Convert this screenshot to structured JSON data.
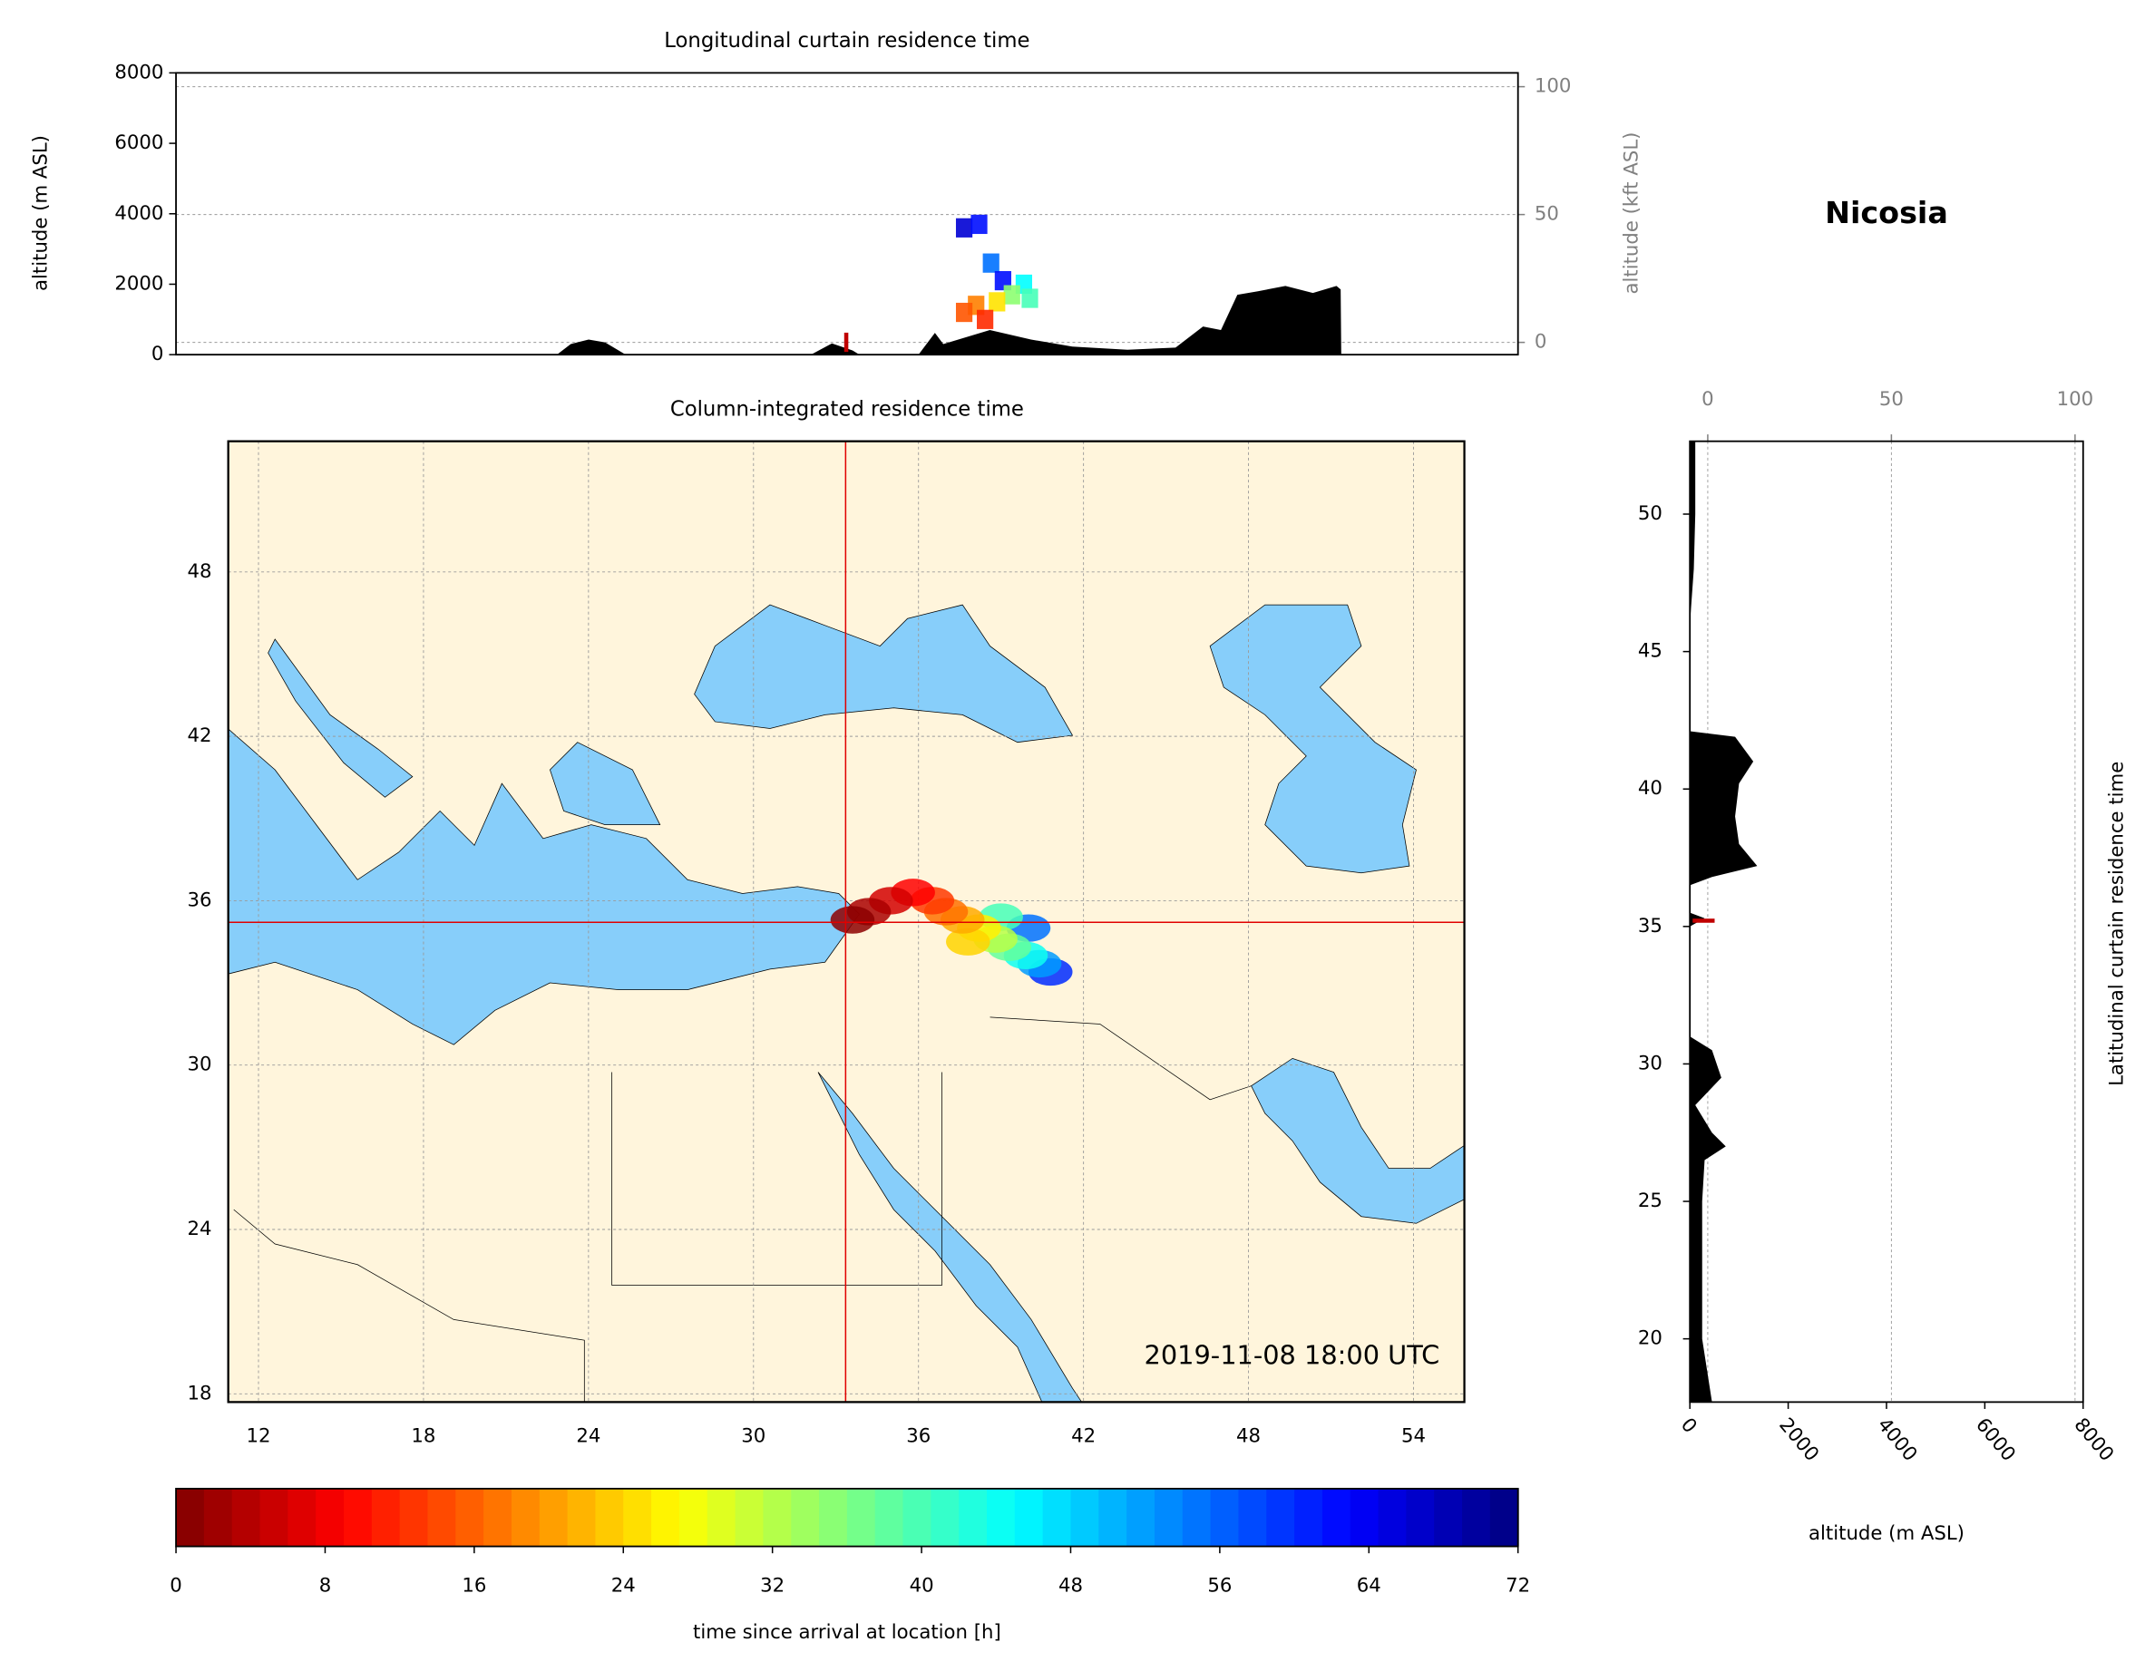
{
  "chart_data": [
    {
      "type": "area",
      "title": "Longitudinal curtain residence time",
      "ylabel": "altitude (m ASL)",
      "y2label": "altitude (kft ASL)",
      "xlim": [
        10.9,
        55.85
      ],
      "ylim": [
        0,
        8000
      ],
      "yticks": [
        0,
        2000,
        4000,
        6000,
        8000
      ],
      "y2lim": [
        -4.8,
        105.4
      ],
      "y2ticks": [
        0,
        50,
        100
      ],
      "grid": true,
      "color": "#000000",
      "x": [
        23.66,
        24.12,
        24.72,
        25.27,
        25.96,
        32.17,
        32.87,
        33.56,
        33.79,
        35.77,
        36.32,
        36.6,
        38.16,
        39.54,
        40.92,
        42.77,
        44.38,
        45.3,
        45.9,
        46.45,
        47.14,
        48.06,
        48.98,
        49.77,
        49.91,
        49.93
      ],
      "values": [
        0,
        300,
        430,
        350,
        0,
        0,
        320,
        120,
        0,
        0,
        620,
        300,
        700,
        430,
        230,
        140,
        200,
        800,
        700,
        1700,
        1800,
        1950,
        1750,
        1950,
        1850,
        0
      ],
      "cells": {
        "lon": [
          37.3,
          37.8,
          38.2,
          38.6,
          39.3,
          38.9,
          38.4,
          37.7,
          37.3,
          38.0,
          39.5
        ],
        "altitude": [
          3600,
          3700,
          2600,
          2100,
          2000,
          1700,
          1500,
          1400,
          1200,
          1000,
          1600
        ],
        "time": [
          66,
          62,
          55,
          62,
          45,
          35,
          25,
          18,
          15,
          12,
          40
        ]
      }
    },
    {
      "type": "map",
      "title": "Column-integrated residence time",
      "location_name": "Nicosia",
      "timestamp": "2019-11-08 18:00 UTC",
      "xlim": [
        10.9,
        55.85
      ],
      "xticks": [
        12,
        18,
        24,
        30,
        36,
        42,
        48,
        54
      ],
      "ylim": [
        17.7,
        52.77
      ],
      "yticks": [
        18,
        24,
        30,
        36,
        42,
        48
      ],
      "grid": true,
      "location": {
        "lon": 33.35,
        "lat": 35.21
      },
      "plume": {
        "lon": [
          33.6,
          34.2,
          35.0,
          35.8,
          36.5,
          37.0,
          37.6,
          38.2,
          38.8,
          39.3,
          39.9,
          40.4,
          40.8,
          37.8,
          39.0,
          40.0
        ],
        "lat": [
          35.3,
          35.6,
          36.0,
          36.3,
          36.0,
          35.6,
          35.3,
          35.0,
          34.6,
          34.3,
          34.0,
          33.7,
          33.4,
          34.5,
          35.4,
          35.0
        ],
        "time": [
          1,
          3,
          6,
          9,
          13,
          17,
          21,
          26,
          32,
          38,
          44,
          52,
          60,
          24,
          40,
          55
        ]
      }
    },
    {
      "type": "area_h",
      "ylabel": "Latitudinal curtain residence time",
      "xlabel": "altitude (m ASL)",
      "xlim": [
        0,
        8000
      ],
      "xticks": [
        0,
        2000,
        4000,
        6000,
        8000
      ],
      "x2lim": [
        -4.87,
        102.2
      ],
      "x2ticks": [
        0,
        50,
        100
      ],
      "ylim": [
        17.7,
        52.65
      ],
      "yticks": [
        20,
        25,
        30,
        35,
        40,
        45,
        50
      ],
      "grid": true,
      "color": "#000000",
      "y": [
        52.65,
        50,
        48,
        46,
        42.1,
        41.9,
        41,
        40.2,
        39,
        38,
        37.2,
        36.8,
        36.5,
        35.5,
        35.3,
        35,
        31,
        30.5,
        29.5,
        28.5,
        27.5,
        27,
        26.5,
        25,
        20,
        17.7
      ],
      "values": [
        110,
        110,
        80,
        0,
        0,
        920,
        1290,
        1000,
        920,
        1000,
        1370,
        450,
        0,
        0,
        300,
        0,
        0,
        450,
        640,
        110,
        450,
        730,
        300,
        250,
        250,
        450
      ]
    },
    {
      "type": "colorbar",
      "label": "time since arrival at location [h]",
      "lim": [
        0,
        72
      ],
      "ticks": [
        0,
        8,
        16,
        24,
        32,
        40,
        48,
        56,
        64,
        72
      ],
      "colors": [
        "#7f0000",
        "#ff0000",
        "#ff7f00",
        "#ffff00",
        "#7fff7f",
        "#00ffff",
        "#007fff",
        "#0000ff",
        "#00007f"
      ]
    }
  ]
}
